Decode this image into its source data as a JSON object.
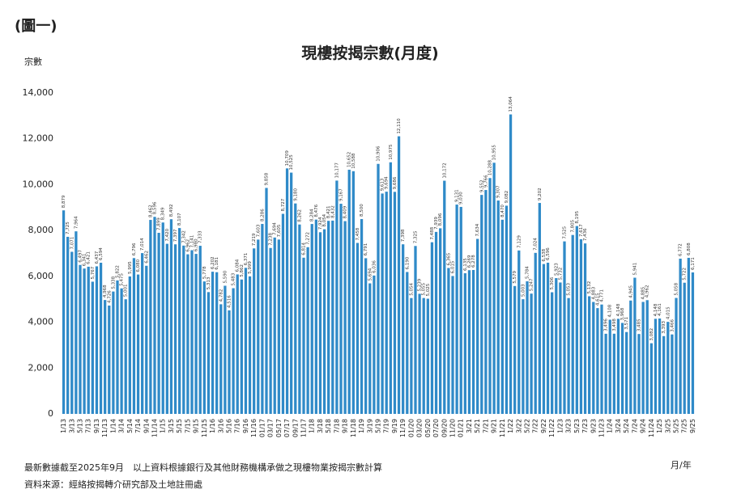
{
  "figure_label": "(圖一)",
  "chart_data": {
    "type": "bar",
    "title": "現樓按揭宗數(月度)",
    "y_label": "宗數",
    "x_label": "月/年",
    "notes": [
      "最新數據截至2025年9月　以上資料根據銀行及其他財務機構承做之現樓物業按揭宗數計算",
      "資料來源：經絡按揭轉介研究部及土地註冊處"
    ],
    "color": "#2f8ac8",
    "ylim": [
      0,
      14000
    ],
    "yticks": [
      0,
      {
        "value": 2000,
        "label": "2,000"
      },
      {
        "value": 4000,
        "label": "4,000"
      },
      {
        "value": 6000,
        "label": "6,000"
      },
      {
        "value": 8000,
        "label": "8,000"
      },
      {
        "value": 10000,
        "label": "10,000"
      },
      {
        "value": 12000,
        "label": "12,000"
      },
      {
        "value": 14000,
        "label": "14,000"
      }
    ],
    "categories": [
      "1/13",
      null,
      "3/13",
      null,
      "5/13",
      null,
      "7/13",
      null,
      "9/13",
      null,
      "11/13",
      null,
      "1/14",
      null,
      "3/14",
      null,
      "5/14",
      null,
      "7/14",
      null,
      "9/14",
      null,
      "11/14",
      null,
      "1/15",
      null,
      "3/15",
      null,
      "5/15",
      null,
      "7/15",
      null,
      "9/15",
      null,
      "11/15",
      null,
      "1/16",
      null,
      "3/16",
      null,
      "5/16",
      null,
      "7/16",
      null,
      "9/16",
      null,
      "11/16",
      null,
      "01/17",
      null,
      "03/17",
      null,
      "05/17",
      null,
      "07/17",
      null,
      "09/17",
      null,
      "11/17",
      null,
      "1/18",
      null,
      "3/18",
      null,
      "5/18",
      null,
      "7/18",
      null,
      "9/18",
      null,
      "11/18",
      null,
      "1/19",
      null,
      "3/19",
      null,
      "5/19",
      null,
      "7/19",
      null,
      "9/19",
      null,
      "11/19",
      null,
      "01/20",
      null,
      "03/20",
      null,
      "05/20",
      null,
      "07/20",
      null,
      "09/20",
      null,
      "11/20",
      null,
      "01/21",
      null,
      "3/21",
      null,
      "5/21",
      null,
      "7/21",
      null,
      "9/21",
      null,
      "11/21",
      null,
      "1/22",
      null,
      "3/22",
      null,
      "5/22",
      null,
      "7/22",
      null,
      "9/22",
      null,
      "11/22",
      null,
      "1/23",
      null,
      "3/23",
      null,
      "5/23",
      null,
      "7/23",
      null,
      "9/23",
      null,
      "11/23",
      null,
      "1/24",
      null,
      "3/24",
      null,
      "5/24",
      null,
      "7/24",
      null,
      "9/24",
      null,
      "11/24",
      null,
      "1/25",
      null,
      "3/25",
      null,
      "5/25",
      null,
      "7/25",
      null,
      "9/25"
    ],
    "values": [
      8879,
      7725,
      7071,
      7964,
      6497,
      6341,
      6421,
      5767,
      6437,
      6594,
      4968,
      4726,
      5338,
      5822,
      5475,
      5001,
      5995,
      6796,
      6080,
      7014,
      6462,
      8462,
      8596,
      7899,
      8349,
      7420,
      8492,
      7397,
      8107,
      7342,
      6962,
      7141,
      6980,
      7333,
      5778,
      5313,
      6202,
      6181,
      4782,
      5590,
      4516,
      5483,
      6084,
      5862,
      6371,
      5999,
      7219,
      7603,
      8286,
      9858,
      7238,
      7694,
      7605,
      8727,
      10709,
      10525,
      9180,
      8262,
      6814,
      7272,
      8284,
      8476,
      7924,
      8054,
      8421,
      8432,
      10177,
      9167,
      8409,
      10652,
      10588,
      7458,
      8500,
      6791,
      5694,
      6036,
      10906,
      9613,
      9694,
      10975,
      9686,
      12110,
      7398,
      6190,
      5054,
      7325,
      5239,
      5055,
      5025,
      7488,
      7939,
      8096,
      10172,
      6365,
      6015,
      9131,
      9030,
      6135,
      6269,
      6278,
      7634,
      9552,
      9766,
      10288,
      10955,
      9307,
      8470,
      9082,
      13064,
      5579,
      7129,
      5003,
      5784,
      5247,
      7024,
      9202,
      6538,
      6596,
      5306,
      5923,
      5732,
      7525,
      5053,
      7805,
      8195,
      7617,
      7436,
      5132,
      4883,
      4615,
      4771,
      3496,
      4108,
      3498,
      4148,
      3968,
      3571,
      4945,
      5941,
      3485,
      4885,
      4962,
      3082,
      4148,
      4161,
      3393,
      4015,
      3466,
      5058,
      6772,
      5722,
      6808,
      6171
    ],
    "value_labels": [
      "8,879",
      "7,725",
      "7,071",
      "7,964",
      "6,497",
      "6,341",
      "6,421",
      "5,767",
      "6,437",
      "6,594",
      "4,968",
      "4,726",
      "5,338",
      "5,822",
      "5,475",
      "5,001",
      "5,995",
      "6,796",
      "6,080",
      "7,014",
      "6,462",
      "8,462",
      "8,596",
      "7,899",
      "8,349",
      "7,420",
      "8,492",
      "7,397",
      "8,107",
      "7,342",
      "6,962",
      "7,141",
      "6,980",
      "7,333",
      "5,778",
      "5,313",
      "6,202",
      "6,181",
      "4,782",
      "5,590",
      "4,516",
      "5,483",
      "6,084",
      "5,862",
      "6,371",
      "5,999",
      "7,219",
      "7,603",
      "8,286",
      "9,858",
      "7,238",
      "7,694",
      "7,605",
      "8,727",
      "10,709",
      "10,525",
      "9,180",
      "8,262",
      "6,814",
      "7,272",
      "8,284",
      "8,476",
      "7,924",
      "8,054",
      "8,421",
      "8,432",
      "10,177",
      "9,167",
      "8,409",
      "10,652",
      "10,588",
      "7,458",
      "8,500",
      "6,791",
      "5,694",
      "6,036",
      "10,906",
      "9,613",
      "9,694",
      "10,975",
      "9,686",
      "12,110",
      "7,398",
      "6,190",
      "5,054",
      "7,325",
      "5,239",
      "5,055",
      "5,025",
      "7,488",
      "7,939",
      "8,096",
      "10,172",
      "6,365",
      "6,015",
      "9,131",
      "9,030",
      "6,135",
      "6,269",
      "6,278",
      "7,634",
      "9,552",
      "9,766",
      "10,288",
      "10,955",
      "9,307",
      "8,470",
      "9,082",
      "13,064",
      "5,579",
      "7,129",
      "5,003",
      "5,784",
      "5,247",
      "7,024",
      "9,202",
      "6,538",
      "6,596",
      "5,306",
      "5,923",
      "5,732",
      "7,525",
      "5,053",
      "7,805",
      "8,195",
      "7,617",
      "7,436",
      "5,132",
      "4,883",
      "4,615",
      "4,771",
      "3,496",
      "4,108",
      "3,498",
      "4,148",
      "3,968",
      "3,571",
      "4,945",
      "5,941",
      "3,485",
      "4,885",
      "4,962",
      "3,082",
      "4,148",
      "4,161",
      "3,393",
      "4,015",
      "3,466",
      "5,058",
      "6,772",
      "5,722",
      "6,808",
      "6,171"
    ]
  }
}
